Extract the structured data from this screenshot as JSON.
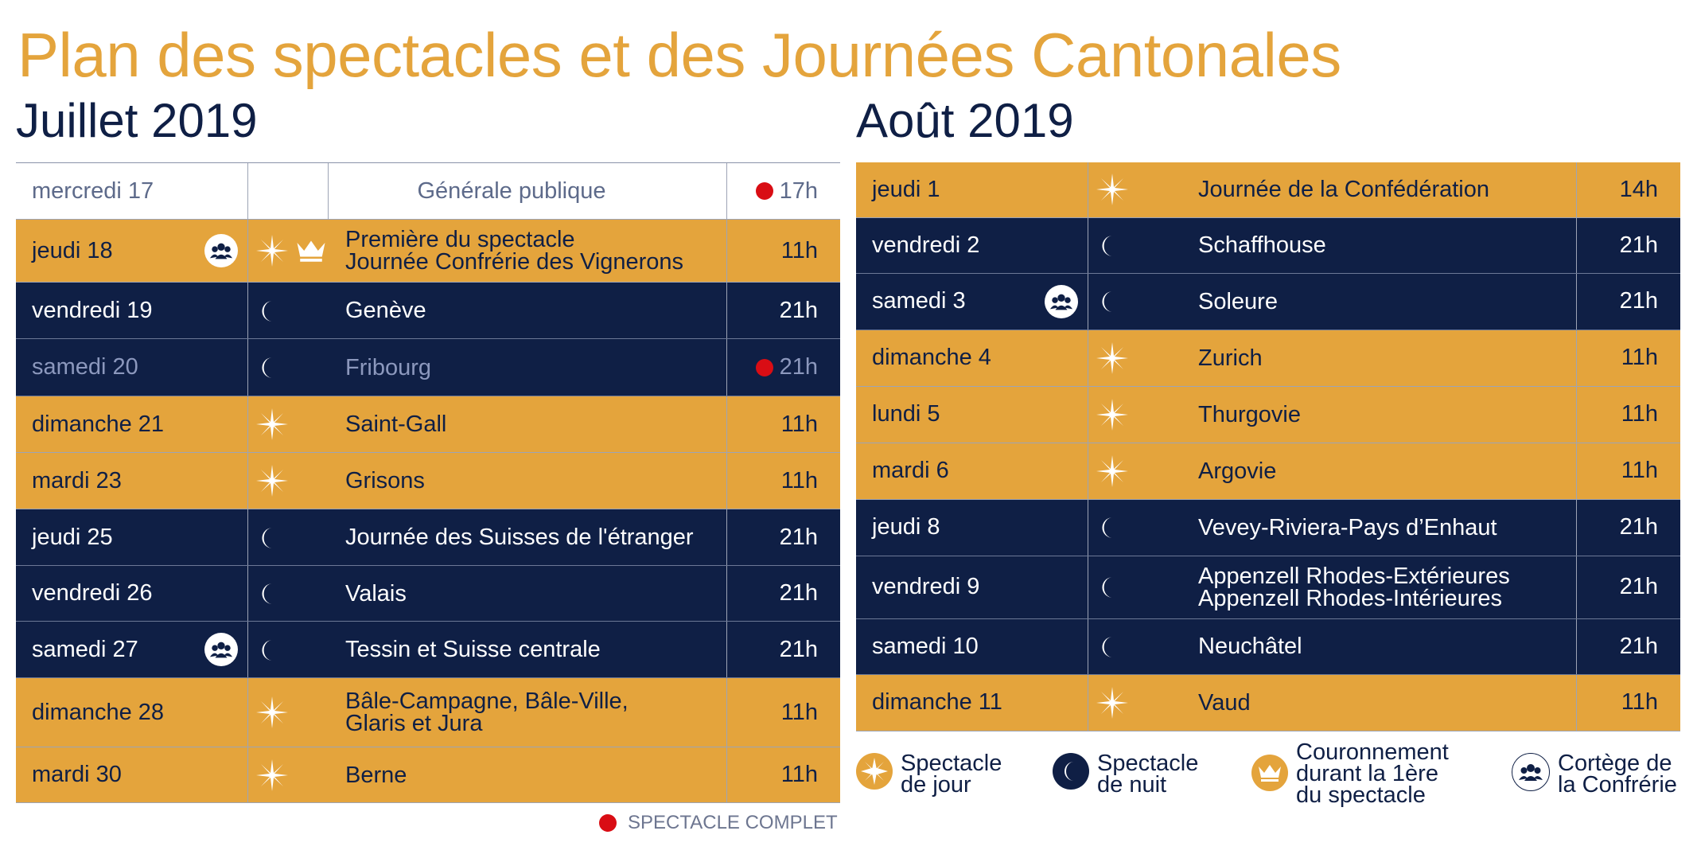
{
  "title": "Plan des spectacles et des Journées Cantonales",
  "colors": {
    "gold": "#e4a43c",
    "navy": "#0f1f45",
    "complet_red": "#d90d14"
  },
  "july": {
    "heading": "Juillet 2019",
    "rows": [
      {
        "day": "mercredi 17",
        "name": "Générale publique",
        "time": "17h",
        "style": "white",
        "icons": [],
        "cortege": false,
        "complet": true
      },
      {
        "day": "jeudi 18",
        "name": "Première du spectacle\nJournée Confrérie des Vignerons",
        "time": "11h",
        "style": "gold",
        "icons": [
          "star-icon",
          "crown-icon"
        ],
        "cortege": true,
        "complet": false
      },
      {
        "day": "vendredi 19",
        "name": "Genève",
        "time": "21h",
        "style": "navy",
        "icons": [
          "moon-icon"
        ],
        "cortege": false,
        "complet": false
      },
      {
        "day": "samedi 20",
        "name": "Fribourg",
        "time": "21h",
        "style": "dim",
        "icons": [
          "moon-icon"
        ],
        "cortege": false,
        "complet": true
      },
      {
        "day": "dimanche 21",
        "name": "Saint-Gall",
        "time": "11h",
        "style": "gold",
        "icons": [
          "star-icon"
        ],
        "cortege": false,
        "complet": false
      },
      {
        "day": "mardi 23",
        "name": "Grisons",
        "time": "11h",
        "style": "gold",
        "icons": [
          "star-icon"
        ],
        "cortege": false,
        "complet": false
      },
      {
        "day": "jeudi 25",
        "name": "Journée des Suisses de l'étranger",
        "time": "21h",
        "style": "navy",
        "icons": [
          "moon-icon"
        ],
        "cortege": false,
        "complet": false
      },
      {
        "day": "vendredi 26",
        "name": "Valais",
        "time": "21h",
        "style": "navy",
        "icons": [
          "moon-icon"
        ],
        "cortege": false,
        "complet": false
      },
      {
        "day": "samedi 27",
        "name": "Tessin et Suisse centrale",
        "time": "21h",
        "style": "navy",
        "icons": [
          "moon-icon"
        ],
        "cortege": true,
        "complet": false
      },
      {
        "day": "dimanche 28",
        "name": "Bâle-Campagne, Bâle-Ville,\nGlaris et Jura",
        "time": "11h",
        "style": "gold",
        "icons": [
          "star-icon"
        ],
        "cortege": false,
        "complet": false
      },
      {
        "day": "mardi 30",
        "name": "Berne",
        "time": "11h",
        "style": "gold",
        "icons": [
          "star-icon"
        ],
        "cortege": false,
        "complet": false
      }
    ]
  },
  "august": {
    "heading": "Août 2019",
    "rows": [
      {
        "day": "jeudi 1",
        "name": "Journée de la Confédération",
        "time": "14h",
        "style": "gold",
        "icons": [
          "star-icon"
        ],
        "cortege": false,
        "complet": false
      },
      {
        "day": "vendredi 2",
        "name": "Schaffhouse",
        "time": "21h",
        "style": "navy",
        "icons": [
          "moon-icon"
        ],
        "cortege": false,
        "complet": false
      },
      {
        "day": "samedi 3",
        "name": "Soleure",
        "time": "21h",
        "style": "navy",
        "icons": [
          "moon-icon"
        ],
        "cortege": true,
        "complet": false
      },
      {
        "day": "dimanche 4",
        "name": "Zurich",
        "time": "11h",
        "style": "gold",
        "icons": [
          "star-icon"
        ],
        "cortege": false,
        "complet": false
      },
      {
        "day": "lundi 5",
        "name": "Thurgovie",
        "time": "11h",
        "style": "gold",
        "icons": [
          "star-icon"
        ],
        "cortege": false,
        "complet": false
      },
      {
        "day": "mardi 6",
        "name": "Argovie",
        "time": "11h",
        "style": "gold",
        "icons": [
          "star-icon"
        ],
        "cortege": false,
        "complet": false
      },
      {
        "day": "jeudi 8",
        "name": "Vevey-Riviera-Pays d’Enhaut",
        "time": "21h",
        "style": "navy",
        "icons": [
          "moon-icon"
        ],
        "cortege": false,
        "complet": false
      },
      {
        "day": "vendredi 9",
        "name": "Appenzell Rhodes-Extérieures\nAppenzell Rhodes-Intérieures",
        "time": "21h",
        "style": "navy",
        "icons": [
          "moon-icon"
        ],
        "cortege": false,
        "complet": false
      },
      {
        "day": "samedi 10",
        "name": "Neuchâtel",
        "time": "21h",
        "style": "navy",
        "icons": [
          "moon-icon"
        ],
        "cortege": false,
        "complet": false
      },
      {
        "day": "dimanche 11",
        "name": "Vaud",
        "time": "11h",
        "style": "gold",
        "icons": [
          "star-icon"
        ],
        "cortege": false,
        "complet": false
      }
    ]
  },
  "legend": {
    "jour": "Spectacle\nde jour",
    "nuit": "Spectacle\nde nuit",
    "couronnement": "Couronnement\ndurant la 1ère\ndu spectacle",
    "cortege": "Cortège de\nla Confrérie",
    "complet": "SPECTACLE COMPLET"
  }
}
